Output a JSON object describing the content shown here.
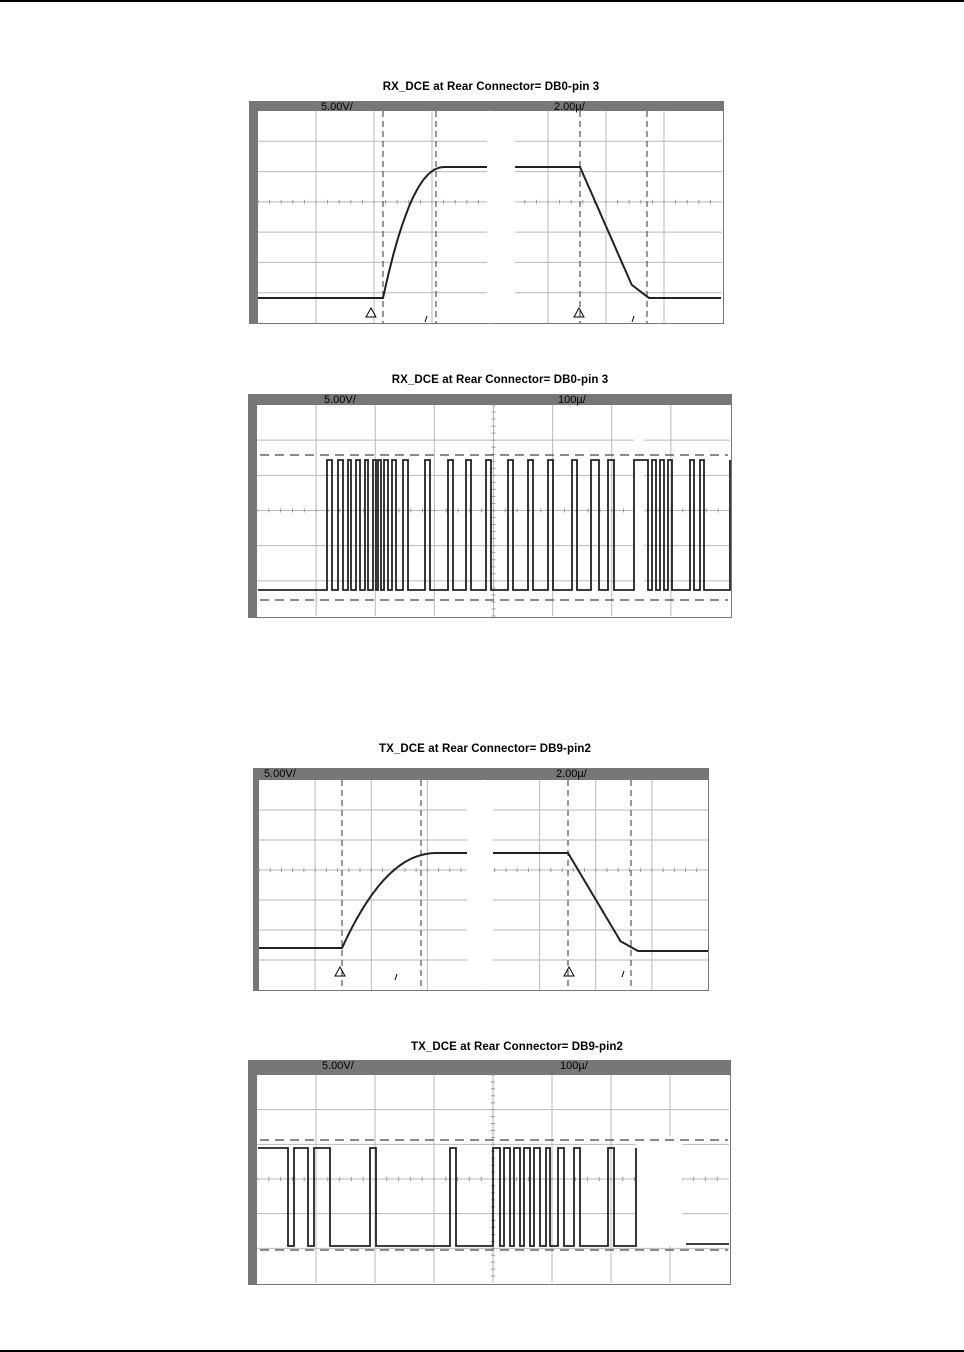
{
  "chart_data": [
    {
      "type": "line",
      "title": "RX_DCE  at Rear Connector= DB0-pin 3",
      "volts_label": "5.00V/",
      "time_label": "2.00µ/",
      "panels": [
        {
          "edge": "rising"
        },
        {
          "edge": "falling"
        }
      ]
    },
    {
      "type": "line",
      "title": "RX_DCE  at Rear Connector= DB0-pin 3",
      "volts_label": "5.00V/",
      "time_label": "100µ/"
    },
    {
      "type": "line",
      "title": "TX_DCE  at Rear Connector= DB9-pin2",
      "volts_label": "5.00V/",
      "time_label": "2.00µ/",
      "panels": [
        {
          "edge": "rising"
        },
        {
          "edge": "falling"
        }
      ]
    },
    {
      "type": "line",
      "title": "TX_DCE  at Rear Connector= DB9-pin2",
      "volts_label": "5.00V/",
      "time_label": "100µ/"
    }
  ]
}
